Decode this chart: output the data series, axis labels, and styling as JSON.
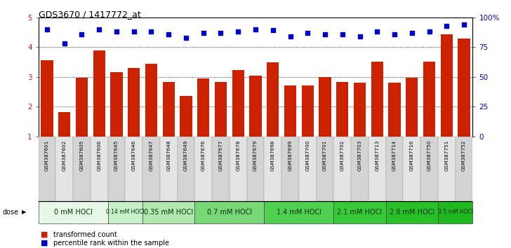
{
  "title": "GDS3670 / 1417772_at",
  "samples": [
    "GSM387601",
    "GSM387602",
    "GSM387605",
    "GSM387606",
    "GSM387645",
    "GSM387646",
    "GSM387647",
    "GSM387648",
    "GSM387649",
    "GSM387676",
    "GSM387677",
    "GSM387678",
    "GSM387679",
    "GSM387698",
    "GSM387699",
    "GSM387700",
    "GSM387701",
    "GSM387702",
    "GSM387703",
    "GSM387713",
    "GSM387714",
    "GSM387716",
    "GSM387750",
    "GSM387751",
    "GSM387752"
  ],
  "bar_values": [
    3.57,
    1.82,
    2.97,
    3.88,
    3.15,
    3.3,
    3.43,
    2.84,
    2.35,
    2.94,
    2.82,
    3.22,
    3.04,
    3.48,
    2.71,
    2.71,
    3.0,
    2.84,
    2.8,
    3.52,
    2.8,
    2.98,
    3.52,
    4.43,
    4.28
  ],
  "scatter_values": [
    90,
    78,
    86,
    90,
    88,
    88,
    88,
    86,
    83,
    87,
    87,
    88,
    90,
    89,
    84,
    87,
    86,
    86,
    84,
    88,
    86,
    87,
    88,
    93,
    94
  ],
  "dose_groups": [
    {
      "label": "0 mM HOCl",
      "start": 0,
      "end": 4,
      "color": "#e8f8e8"
    },
    {
      "label": "0.14 mM HOCl",
      "start": 4,
      "end": 6,
      "color": "#c8f0c8"
    },
    {
      "label": "0.35 mM HOCl",
      "start": 6,
      "end": 9,
      "color": "#b0e8b0"
    },
    {
      "label": "0.7 mM HOCl",
      "start": 9,
      "end": 13,
      "color": "#78d878"
    },
    {
      "label": "1.4 mM HOCl",
      "start": 13,
      "end": 17,
      "color": "#50d050"
    },
    {
      "label": "2.1 mM HOCl",
      "start": 17,
      "end": 20,
      "color": "#38c838"
    },
    {
      "label": "2.8 mM HOCl",
      "start": 20,
      "end": 23,
      "color": "#28c028"
    },
    {
      "label": "3.5 mM HOCl",
      "start": 23,
      "end": 25,
      "color": "#20b820"
    }
  ],
  "bar_color": "#cc2200",
  "scatter_color": "#0000cc",
  "ylim_left": [
    1,
    5
  ],
  "ylim_right": [
    0,
    100
  ],
  "yticks_left": [
    1,
    2,
    3,
    4,
    5
  ],
  "yticks_right": [
    0,
    25,
    50,
    75,
    100
  ],
  "ytick_labels_right": [
    "0",
    "25",
    "50",
    "75",
    "100%"
  ],
  "legend_transformed": "transformed count",
  "legend_percentile": "percentile rank within the sample"
}
